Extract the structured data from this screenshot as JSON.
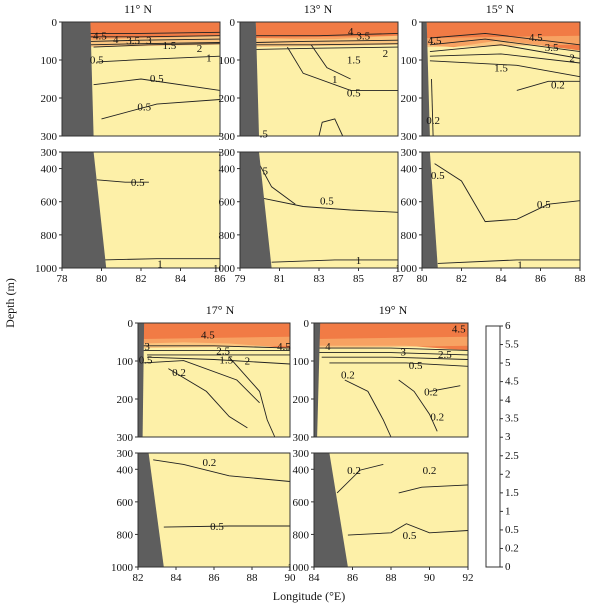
{
  "chart_data": [
    {
      "type": "contour",
      "title": "11° N",
      "x": [
        78,
        80,
        82,
        84,
        86
      ],
      "xlim": [
        78,
        86
      ],
      "upper_depth": [
        0,
        100,
        200,
        300
      ],
      "lower_depth": [
        300,
        400,
        600,
        800,
        1000
      ],
      "contour_labels_upper": [
        "4.5",
        "4",
        "3.5",
        "3",
        "1.5",
        "2",
        "0.5",
        "1",
        "0.5",
        "0.5"
      ],
      "contour_labels_lower": [
        "0.5",
        "1"
      ]
    },
    {
      "type": "contour",
      "title": "13° N",
      "x": [
        79,
        81,
        83,
        85,
        87
      ],
      "xlim": [
        79,
        87
      ],
      "upper_depth": [
        0,
        100,
        200,
        300
      ],
      "lower_depth": [
        300,
        400,
        600,
        800,
        1000
      ],
      "contour_labels_upper": [
        "4",
        "3.5",
        "1.5",
        "2",
        "1",
        "0.5",
        ".5"
      ],
      "contour_labels_lower": [
        "5",
        "0.5",
        "1"
      ]
    },
    {
      "type": "contour",
      "title": "15° N",
      "x": [
        80,
        82,
        84,
        86,
        88
      ],
      "xlim": [
        80,
        88
      ],
      "upper_depth": [
        0,
        100,
        200,
        300
      ],
      "lower_depth": [
        300,
        400,
        600,
        800,
        1000
      ],
      "contour_labels_upper": [
        "4.5",
        "4.5",
        "3.5",
        "2",
        "1.5",
        "0.2",
        "0.2"
      ],
      "contour_labels_lower": [
        "0.5",
        "0.5",
        "1"
      ]
    },
    {
      "type": "contour",
      "title": "17° N",
      "x": [
        82,
        84,
        86,
        88,
        90
      ],
      "xlim": [
        82,
        90
      ],
      "upper_depth": [
        0,
        100,
        200,
        300
      ],
      "lower_depth": [
        300,
        400,
        600,
        800,
        1000
      ],
      "contour_labels_upper": [
        "4.5",
        "4.5",
        "3",
        "2.5",
        "1.5",
        "2",
        "0.5",
        "0.2"
      ],
      "contour_labels_lower": [
        "0.2",
        "0.5"
      ]
    },
    {
      "type": "contour",
      "title": "19° N",
      "x": [
        84,
        86,
        88,
        90,
        92
      ],
      "xlim": [
        84,
        92
      ],
      "upper_depth": [
        0,
        100,
        200,
        300
      ],
      "lower_depth": [
        300,
        400,
        600,
        800,
        1000
      ],
      "contour_labels_upper": [
        "4.5",
        "4",
        "3",
        "2.5",
        "0.5",
        "0.2",
        "0.2",
        "0.2"
      ],
      "contour_labels_lower": [
        "0.2",
        "0.2",
        "0.5"
      ]
    }
  ],
  "axes": {
    "ylabel": "Depth (m)",
    "xlabel": "Longitude (°E)"
  },
  "colorbar": {
    "levels": [
      "0",
      "0.2",
      "0.5",
      "1",
      "1.5",
      "2",
      "2.5",
      "3",
      "3.5",
      "4",
      "4.5",
      "5",
      "5.5",
      "6"
    ],
    "colors": [
      "#fff5b8",
      "#fdeba3",
      "#fde09a",
      "#fcd491",
      "#fcc886",
      "#fbbd7c",
      "#fab172",
      "#f9a568",
      "#f8995f",
      "#f88d55",
      "#f6814c",
      "#f57544",
      "#f2693c"
    ]
  },
  "colors": {
    "base_fill": "#fdf0a8",
    "surface_fill": "#f17b45",
    "land": "#5e5e5e",
    "line": "#222222"
  }
}
